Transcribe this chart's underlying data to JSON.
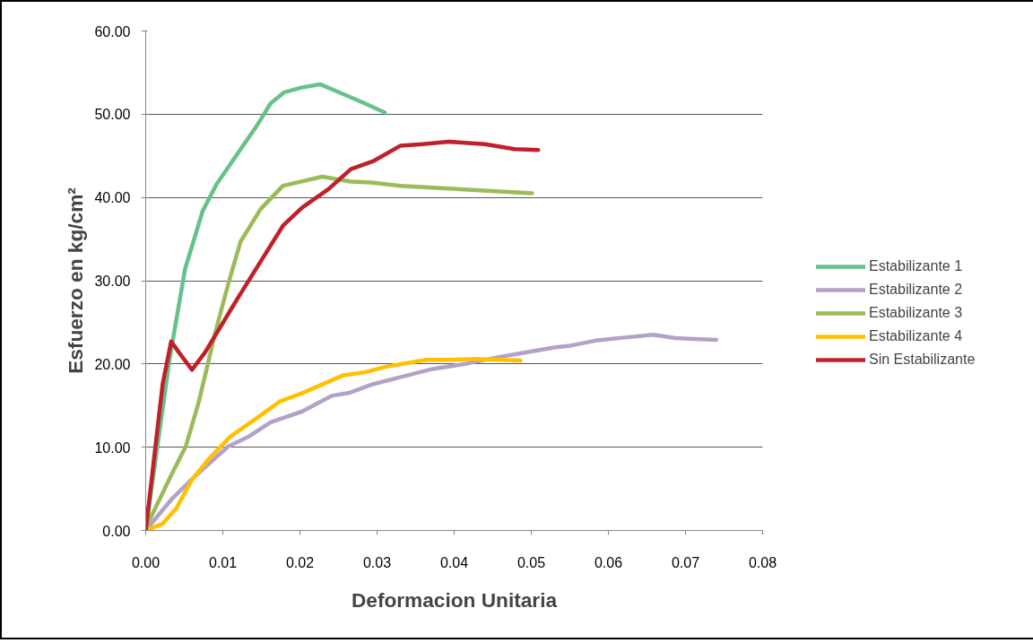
{
  "chart_data": {
    "type": "line",
    "xlabel": "Deformacion Unitaria",
    "ylabel": "Esfuerzo en kg/cm²",
    "xlim": [
      0,
      0.08
    ],
    "ylim": [
      0,
      60
    ],
    "xticks": [
      {
        "value": 0,
        "label": "0.00"
      },
      {
        "value": 0.01,
        "label": "0.01"
      },
      {
        "value": 0.02,
        "label": "0.02"
      },
      {
        "value": 0.03,
        "label": "0.03"
      },
      {
        "value": 0.04,
        "label": "0.04"
      },
      {
        "value": 0.05,
        "label": "0.05"
      },
      {
        "value": 0.06,
        "label": "0.06"
      },
      {
        "value": 0.07,
        "label": "0.07"
      },
      {
        "value": 0.08,
        "label": "0.08"
      }
    ],
    "yticks": [
      {
        "value": 0,
        "label": "0.00"
      },
      {
        "value": 10,
        "label": "10.00"
      },
      {
        "value": 20,
        "label": "20.00"
      },
      {
        "value": 30,
        "label": "30.00"
      },
      {
        "value": 40,
        "label": "40.00"
      },
      {
        "value": 50,
        "label": "50.00"
      },
      {
        "value": 60,
        "label": "60.00"
      }
    ],
    "grid": "y",
    "legend": "right",
    "marker": "none",
    "line_style": "solid",
    "series": [
      {
        "name": "Estabilizante 1",
        "color": "#66c28a",
        "x": [
          0,
          0.0031,
          0.0051,
          0.0074,
          0.0092,
          0.0112,
          0.0144,
          0.0162,
          0.0179,
          0.0202,
          0.0226,
          0.0249,
          0.0284,
          0.031
        ],
        "values": [
          0,
          20.6,
          31.4,
          38.4,
          41.6,
          44.3,
          48.6,
          51.3,
          52.6,
          53.2,
          53.6,
          52.7,
          51.3,
          50.2
        ]
      },
      {
        "name": "Estabilizante 2",
        "color": "#b3a2c8",
        "x": [
          0,
          0.0035,
          0.0065,
          0.0107,
          0.0132,
          0.0162,
          0.0203,
          0.0242,
          0.0263,
          0.0292,
          0.033,
          0.0372,
          0.0414,
          0.0456,
          0.0481,
          0.0531,
          0.0551,
          0.0583,
          0.0624,
          0.0658,
          0.0687,
          0.074
        ],
        "values": [
          0,
          3.9,
          6.6,
          10.1,
          11.2,
          13.0,
          14.3,
          16.2,
          16.5,
          17.5,
          18.4,
          19.4,
          20.0,
          20.8,
          21.2,
          22.0,
          22.2,
          22.8,
          23.2,
          23.5,
          23.1,
          22.9
        ]
      },
      {
        "name": "Estabilizante 3",
        "color": "#9bbb59",
        "x": [
          0,
          0.0035,
          0.0052,
          0.0069,
          0.009,
          0.0107,
          0.0123,
          0.0149,
          0.0178,
          0.0229,
          0.0266,
          0.0292,
          0.033,
          0.0501
        ],
        "values": [
          0.3,
          7.0,
          10.1,
          15.5,
          23.7,
          29.6,
          34.7,
          38.6,
          41.4,
          42.5,
          41.9,
          41.8,
          41.4,
          40.5
        ]
      },
      {
        "name": "Estabilizante 4",
        "color": "#ffc000",
        "x": [
          0,
          0.0022,
          0.004,
          0.006,
          0.0081,
          0.011,
          0.0141,
          0.0174,
          0.0203,
          0.0255,
          0.0284,
          0.0313,
          0.0364,
          0.0398,
          0.0427,
          0.0486
        ],
        "values": [
          0,
          0.8,
          2.7,
          6.1,
          8.5,
          11.3,
          13.3,
          15.5,
          16.5,
          18.6,
          19.0,
          19.7,
          20.5,
          20.5,
          20.6,
          20.4
        ]
      },
      {
        "name": "Sin Estabilizante",
        "color": "#c0202a",
        "x": [
          0,
          0.0022,
          0.0033,
          0.0043,
          0.006,
          0.0077,
          0.012,
          0.0149,
          0.0178,
          0.0203,
          0.0237,
          0.0266,
          0.0296,
          0.033,
          0.0359,
          0.0393,
          0.044,
          0.0478,
          0.0509
        ],
        "values": [
          0,
          17.6,
          22.7,
          21.4,
          19.3,
          21.4,
          28.0,
          32.3,
          36.6,
          38.8,
          41.0,
          43.4,
          44.4,
          46.2,
          46.4,
          46.7,
          46.4,
          45.8,
          45.7
        ]
      }
    ]
  }
}
